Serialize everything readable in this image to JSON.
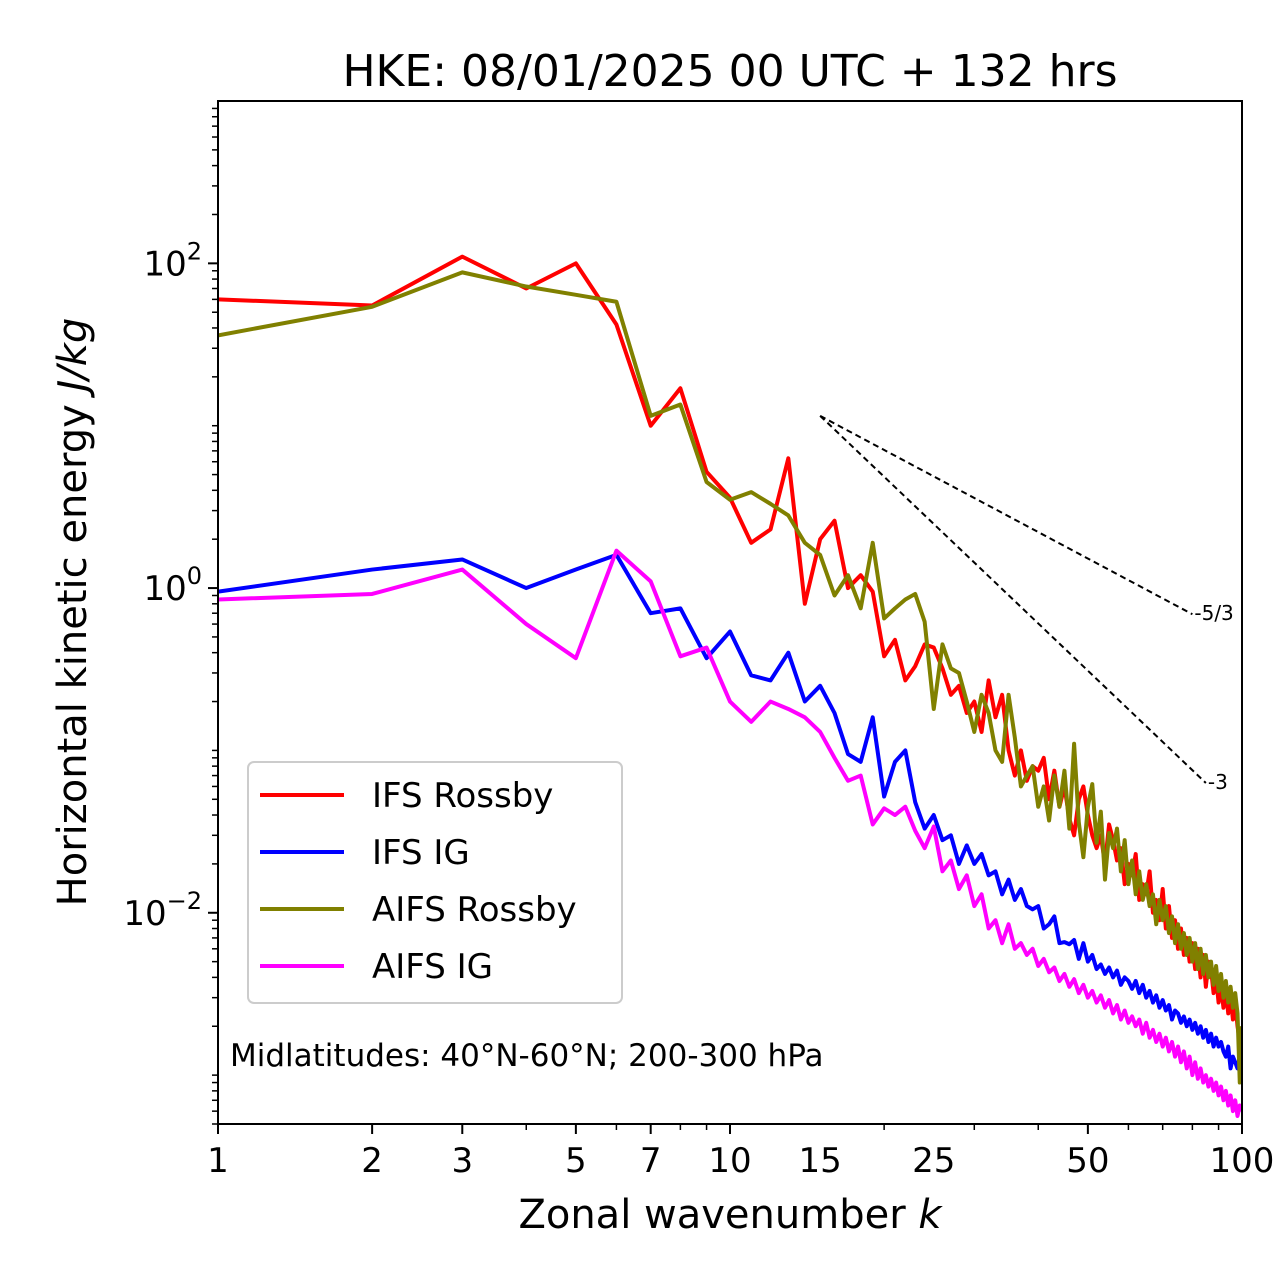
{
  "chart_data": {
    "type": "line",
    "title": "HKE: 08/01/2025 00 UTC + 132 hrs",
    "xlabel_prefix": "Zonal wavenumber ",
    "xlabel_var": "k",
    "ylabel_prefix": "Horizontal kinetic energy ",
    "ylabel_unit": "J/kg",
    "xscale": "log",
    "yscale": "log",
    "xlim": [
      1,
      100
    ],
    "ylim": [
      0.0005,
      1000
    ],
    "x_ticks": [
      1,
      2,
      3,
      5,
      7,
      10,
      15,
      25,
      50,
      100
    ],
    "x_tick_labels": [
      "1",
      "2",
      "3",
      "5",
      "7",
      "10",
      "15",
      "25",
      "50",
      "100"
    ],
    "y_ticks": [
      0.01,
      1,
      100
    ],
    "y_tick_labels": [
      {
        "base": "10",
        "exp": "−2"
      },
      {
        "base": "10",
        "exp": "0"
      },
      {
        "base": "10",
        "exp": "2"
      }
    ],
    "grid": false,
    "legend_position": "lower-left",
    "annotation": "Midlatitudes: 40°N-60°N; 200-300 hPa",
    "reference_lines": [
      {
        "label": "-5/3",
        "x": [
          15,
          80
        ],
        "y": [
          11.5,
          0.69
        ]
      },
      {
        "label": "-3",
        "x": [
          15,
          85
        ],
        "y": [
          11.5,
          0.063
        ]
      }
    ],
    "series": [
      {
        "name": "IFS Rossby",
        "color": "#ff0000",
        "x": [
          1,
          2,
          3,
          4,
          5,
          6,
          7,
          8,
          9,
          10,
          11,
          12,
          13,
          14,
          15,
          16,
          17,
          18,
          19,
          20,
          21,
          22,
          23,
          24,
          25,
          26,
          27,
          28,
          29,
          30,
          31,
          32,
          33,
          34,
          35,
          36,
          37,
          38,
          39,
          40,
          41,
          42,
          43,
          44,
          45,
          46,
          47,
          48,
          49,
          50,
          51,
          52,
          53,
          54,
          55,
          56,
          57,
          58,
          59,
          60,
          61,
          62,
          63,
          64,
          65,
          66,
          67,
          68,
          69,
          70,
          71,
          72,
          73,
          74,
          75,
          76,
          77,
          78,
          79,
          80,
          81,
          82,
          83,
          84,
          85,
          86,
          87,
          88,
          89,
          90,
          91,
          92,
          93,
          94,
          95,
          96,
          97,
          98,
          99,
          100
        ],
        "y": [
          60,
          55,
          110,
          70,
          100,
          42,
          10,
          17,
          5.2,
          3.6,
          1.9,
          2.3,
          6.3,
          0.8,
          2.0,
          2.6,
          1.0,
          1.2,
          0.95,
          0.38,
          0.48,
          0.27,
          0.33,
          0.45,
          0.43,
          0.32,
          0.22,
          0.25,
          0.17,
          0.2,
          0.13,
          0.27,
          0.16,
          0.22,
          0.1,
          0.07,
          0.1,
          0.065,
          0.08,
          0.075,
          0.09,
          0.05,
          0.075,
          0.045,
          0.06,
          0.038,
          0.03,
          0.05,
          0.06,
          0.04,
          0.03,
          0.025,
          0.03,
          0.02,
          0.035,
          0.028,
          0.021,
          0.025,
          0.015,
          0.02,
          0.017,
          0.023,
          0.012,
          0.015,
          0.013,
          0.018,
          0.01,
          0.012,
          0.009,
          0.014,
          0.008,
          0.011,
          0.007,
          0.009,
          0.006,
          0.008,
          0.0055,
          0.007,
          0.005,
          0.0065,
          0.0045,
          0.006,
          0.004,
          0.0055,
          0.0035,
          0.005,
          0.0045,
          0.0032,
          0.004,
          0.0028,
          0.0035,
          0.0026,
          0.0033,
          0.0024,
          0.003,
          0.0022,
          0.0028,
          0.002,
          0.0016,
          0.0018
        ]
      },
      {
        "name": "IFS IG",
        "color": "#0000ff",
        "x": [
          1,
          2,
          3,
          4,
          5,
          6,
          7,
          8,
          9,
          10,
          11,
          12,
          13,
          14,
          15,
          16,
          17,
          18,
          19,
          20,
          21,
          22,
          23,
          24,
          25,
          26,
          27,
          28,
          29,
          30,
          31,
          32,
          33,
          34,
          35,
          36,
          37,
          38,
          39,
          40,
          41,
          42,
          43,
          44,
          45,
          46,
          47,
          48,
          49,
          50,
          51,
          52,
          53,
          54,
          55,
          56,
          57,
          58,
          59,
          60,
          61,
          62,
          63,
          64,
          65,
          66,
          67,
          68,
          69,
          70,
          71,
          72,
          73,
          74,
          75,
          76,
          77,
          78,
          79,
          80,
          81,
          82,
          83,
          84,
          85,
          86,
          87,
          88,
          89,
          90,
          91,
          92,
          93,
          94,
          95,
          96,
          97,
          98,
          99,
          100
        ],
        "y": [
          0.95,
          1.3,
          1.5,
          1.0,
          1.3,
          1.6,
          0.7,
          0.75,
          0.37,
          0.54,
          0.29,
          0.27,
          0.4,
          0.2,
          0.25,
          0.17,
          0.095,
          0.085,
          0.16,
          0.052,
          0.085,
          0.1,
          0.048,
          0.033,
          0.04,
          0.028,
          0.03,
          0.02,
          0.026,
          0.02,
          0.023,
          0.017,
          0.018,
          0.013,
          0.016,
          0.012,
          0.014,
          0.011,
          0.0105,
          0.011,
          0.008,
          0.0085,
          0.0095,
          0.0065,
          0.0066,
          0.0064,
          0.0068,
          0.0052,
          0.0065,
          0.005,
          0.0055,
          0.0045,
          0.0048,
          0.0042,
          0.0046,
          0.004,
          0.0044,
          0.0036,
          0.004,
          0.0038,
          0.0034,
          0.0038,
          0.0032,
          0.0036,
          0.003,
          0.0033,
          0.0028,
          0.0031,
          0.0026,
          0.0029,
          0.0025,
          0.0027,
          0.0022,
          0.0025,
          0.0024,
          0.0021,
          0.0023,
          0.002,
          0.0022,
          0.0019,
          0.0021,
          0.0018,
          0.002,
          0.0017,
          0.0019,
          0.0016,
          0.0018,
          0.0015,
          0.0017,
          0.0015,
          0.0016,
          0.0014,
          0.0013,
          0.0015,
          0.0011,
          0.0013,
          0.0012,
          0.0011,
          0.0013,
          0.00115
        ]
      },
      {
        "name": "AIFS Rossby",
        "color": "#808000",
        "x": [
          1,
          2,
          3,
          4,
          5,
          6,
          7,
          8,
          9,
          10,
          11,
          12,
          13,
          14,
          15,
          16,
          17,
          18,
          19,
          20,
          21,
          22,
          23,
          24,
          25,
          26,
          27,
          28,
          29,
          30,
          31,
          32,
          33,
          34,
          35,
          36,
          37,
          38,
          39,
          40,
          41,
          42,
          43,
          44,
          45,
          46,
          47,
          48,
          49,
          50,
          51,
          52,
          53,
          54,
          55,
          56,
          57,
          58,
          59,
          60,
          61,
          62,
          63,
          64,
          65,
          66,
          67,
          68,
          69,
          70,
          71,
          72,
          73,
          74,
          75,
          76,
          77,
          78,
          79,
          80,
          81,
          82,
          83,
          84,
          85,
          86,
          87,
          88,
          89,
          90,
          91,
          92,
          93,
          94,
          95,
          96,
          97,
          98,
          99,
          100
        ],
        "y": [
          36,
          54,
          88,
          72,
          64,
          58,
          11.5,
          13.5,
          4.5,
          3.5,
          3.9,
          3.3,
          2.8,
          1.9,
          1.6,
          0.9,
          1.2,
          0.75,
          1.9,
          0.65,
          0.75,
          0.85,
          0.92,
          0.62,
          0.18,
          0.45,
          0.32,
          0.3,
          0.2,
          0.13,
          0.22,
          0.17,
          0.1,
          0.085,
          0.22,
          0.12,
          0.06,
          0.07,
          0.08,
          0.045,
          0.06,
          0.037,
          0.07,
          0.045,
          0.075,
          0.033,
          0.11,
          0.036,
          0.022,
          0.045,
          0.062,
          0.027,
          0.042,
          0.016,
          0.031,
          0.025,
          0.033,
          0.018,
          0.028,
          0.015,
          0.021,
          0.013,
          0.018,
          0.012,
          0.015,
          0.011,
          0.013,
          0.0085,
          0.012,
          0.009,
          0.011,
          0.0075,
          0.0095,
          0.0065,
          0.0085,
          0.006,
          0.0075,
          0.0055,
          0.007,
          0.005,
          0.0065,
          0.0045,
          0.006,
          0.0042,
          0.0055,
          0.004,
          0.005,
          0.0036,
          0.0047,
          0.0033,
          0.0042,
          0.003,
          0.0038,
          0.0028,
          0.0035,
          0.0026,
          0.0032,
          0.0024,
          0.0009,
          0.002
        ]
      },
      {
        "name": "AIFS IG",
        "color": "#ff00ff",
        "x": [
          1,
          2,
          3,
          4,
          5,
          6,
          7,
          8,
          9,
          10,
          11,
          12,
          13,
          14,
          15,
          16,
          17,
          18,
          19,
          20,
          21,
          22,
          23,
          24,
          25,
          26,
          27,
          28,
          29,
          30,
          31,
          32,
          33,
          34,
          35,
          36,
          37,
          38,
          39,
          40,
          41,
          42,
          43,
          44,
          45,
          46,
          47,
          48,
          49,
          50,
          51,
          52,
          53,
          54,
          55,
          56,
          57,
          58,
          59,
          60,
          61,
          62,
          63,
          64,
          65,
          66,
          67,
          68,
          69,
          70,
          71,
          72,
          73,
          74,
          75,
          76,
          77,
          78,
          79,
          80,
          81,
          82,
          83,
          84,
          85,
          86,
          87,
          88,
          89,
          90,
          91,
          92,
          93,
          94,
          95,
          96,
          97,
          98,
          99,
          100
        ],
        "y": [
          0.85,
          0.92,
          1.3,
          0.6,
          0.37,
          1.7,
          1.1,
          0.38,
          0.43,
          0.2,
          0.15,
          0.2,
          0.18,
          0.16,
          0.13,
          0.09,
          0.065,
          0.07,
          0.035,
          0.044,
          0.04,
          0.045,
          0.032,
          0.025,
          0.034,
          0.018,
          0.021,
          0.014,
          0.017,
          0.011,
          0.013,
          0.008,
          0.009,
          0.0065,
          0.0085,
          0.006,
          0.0065,
          0.0055,
          0.006,
          0.0047,
          0.0052,
          0.0043,
          0.0046,
          0.0038,
          0.0042,
          0.0035,
          0.0039,
          0.0032,
          0.0036,
          0.003,
          0.0033,
          0.0028,
          0.0031,
          0.0026,
          0.0029,
          0.0024,
          0.0027,
          0.0022,
          0.0025,
          0.0021,
          0.0023,
          0.002,
          0.0022,
          0.0018,
          0.0021,
          0.0017,
          0.0019,
          0.0016,
          0.0018,
          0.0015,
          0.0017,
          0.0014,
          0.0016,
          0.0013,
          0.0015,
          0.0012,
          0.0014,
          0.0011,
          0.0013,
          0.001,
          0.0012,
          0.00095,
          0.0011,
          0.0009,
          0.001,
          0.00085,
          0.00095,
          0.0008,
          0.0009,
          0.00075,
          0.00085,
          0.0007,
          0.0008,
          0.00065,
          0.00075,
          0.0006,
          0.0007,
          0.00056,
          0.00065,
          0.0006
        ]
      }
    ]
  }
}
